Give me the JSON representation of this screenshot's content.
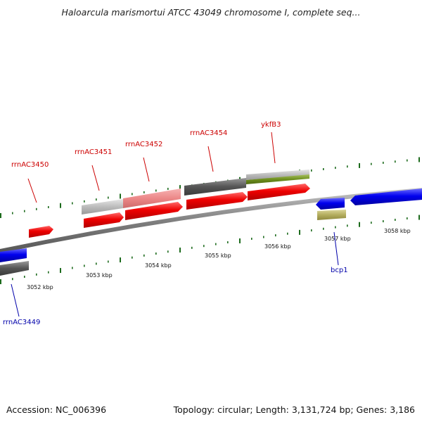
{
  "title": "Haloarcula marismortui ATCC 43049 chromosome I, complete seq...",
  "footer": {
    "accession": "Accession: NC_006396",
    "topology": "Topology: circular; Length: 3,131,724 bp; Genes: 3,186"
  },
  "colors": {
    "plus_label": "#cc0000",
    "minus_label": "#0000aa",
    "tick": "#1d6b1d",
    "backbone": "#888888"
  },
  "kbp_labels": [
    "3052 kbp",
    "3053 kbp",
    "3054 kbp",
    "3055 kbp",
    "3056 kbp",
    "3057 kbp",
    "3058 kbp"
  ],
  "gene_labels": [
    "rrnAC3450",
    "rrnAC3451",
    "rrnAC3452",
    "rrnAC3454",
    "ykfB3",
    "bcp1",
    "rrnAC3449"
  ]
}
